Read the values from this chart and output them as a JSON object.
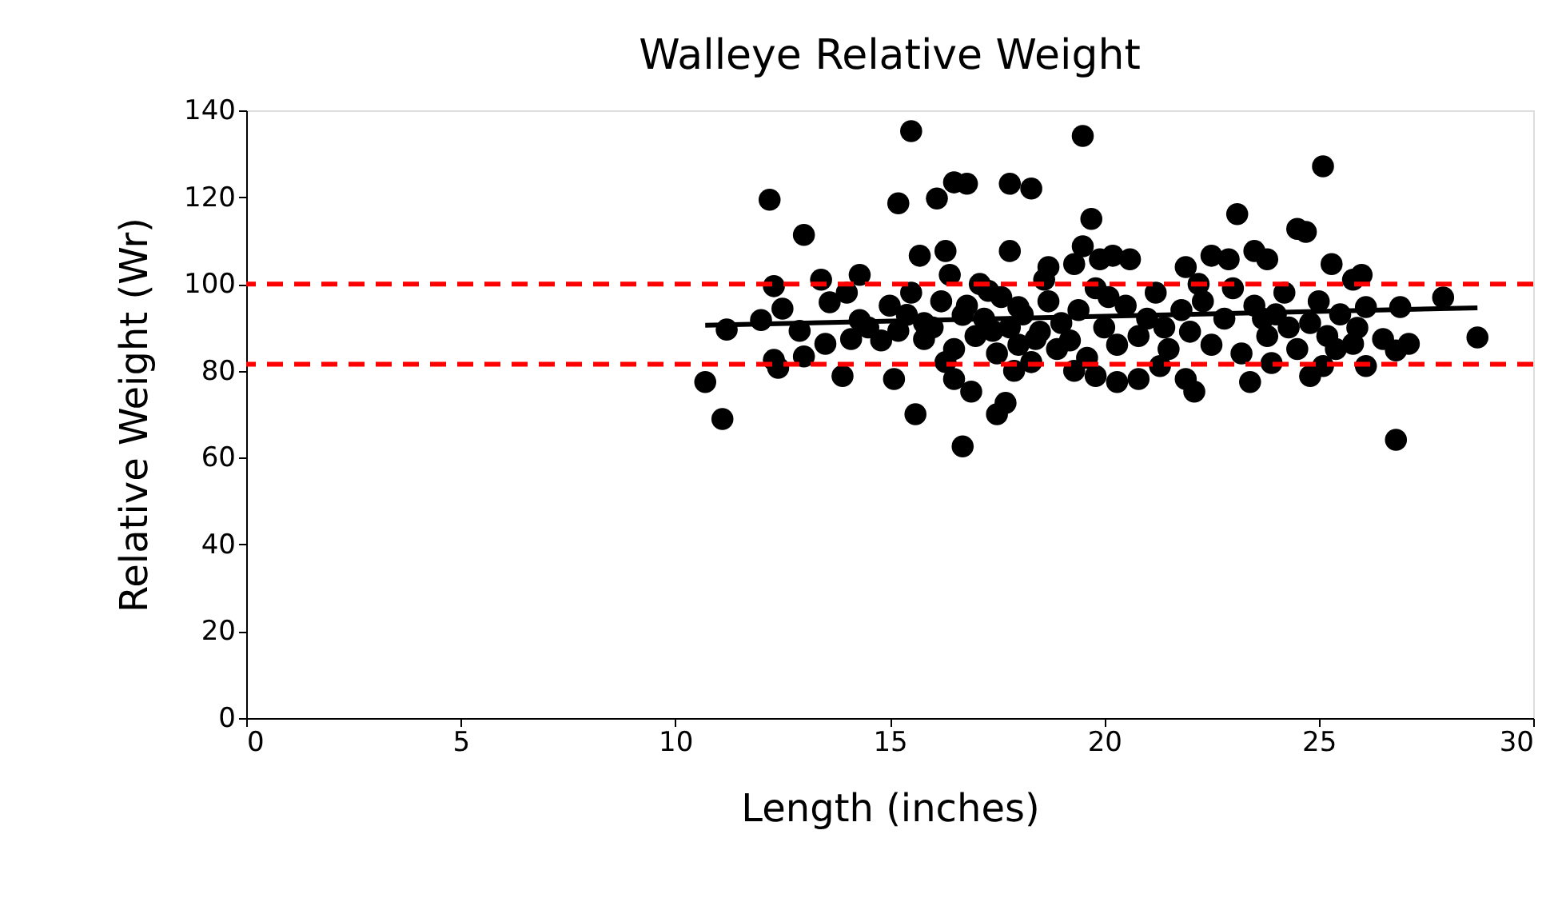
{
  "chart_data": {
    "type": "scatter",
    "title": "Walleye Relative Weight",
    "xlabel": "Length (inches)",
    "ylabel": "Relative Weight (Wr)",
    "xlim": [
      0,
      30
    ],
    "xticks": [
      0,
      5,
      10,
      15,
      20,
      25,
      30
    ],
    "ylim": [
      0,
      140
    ],
    "yticks": [
      0,
      20,
      40,
      60,
      80,
      100,
      120,
      140
    ],
    "grid": false,
    "marker": "circle",
    "series": [
      {
        "type": "scatter",
        "color": "#000000",
        "x": [
          10.7,
          11.1,
          11.2,
          12.2,
          12.3,
          12.3,
          12.4,
          12.0,
          12.5,
          13.0,
          13.0,
          12.9,
          13.4,
          13.6,
          13.5,
          13.9,
          14.3,
          14.3,
          14.1,
          15.1,
          15.2,
          15.5,
          15.6,
          15.7,
          15.4,
          15.2,
          15.8,
          16.1,
          16.5,
          16.8,
          16.3,
          16.4,
          16.5,
          16.7,
          16.9,
          17.5,
          17.7,
          17.8,
          18.3,
          17.8,
          16.7,
          17.3,
          17.4,
          18.0,
          18.4,
          18.7,
          19.3,
          19.5,
          19.5,
          19.7,
          19.9,
          20.2,
          20.6,
          19.8,
          20.3,
          20.8,
          21.3,
          21.9,
          22.1,
          21.9,
          22.5,
          22.9,
          23.1,
          23.5,
          23.8,
          23.4,
          23.9,
          24.5,
          24.7,
          25.1,
          24.8,
          25.1,
          25.3,
          25.8,
          26.0,
          26.1,
          25.8,
          26.5,
          26.8,
          26.8,
          26.9,
          27.1,
          27.9,
          28.7,
          25.9,
          26.1,
          16.0,
          16.5,
          16.8,
          17.0,
          17.2,
          17.5,
          17.6,
          17.8,
          18.0,
          18.1,
          18.3,
          18.5,
          18.7,
          18.9,
          19.0,
          19.2,
          19.4,
          19.6,
          19.8,
          20.0,
          20.3,
          20.5,
          20.8,
          21.0,
          21.2,
          21.5,
          21.8,
          22.0,
          22.3,
          22.5,
          22.8,
          23.0,
          23.2,
          23.5,
          23.8,
          24.0,
          24.2,
          24.5,
          24.8,
          25.0,
          25.2,
          25.5,
          14.8,
          15.0,
          15.5,
          15.8,
          16.2,
          16.3,
          17.1,
          17.9,
          18.6,
          19.3,
          20.1,
          21.4,
          22.2,
          23.7,
          24.3,
          25.4,
          14.0,
          14.5
        ],
        "values": [
          77.4,
          68.9,
          89.5,
          119.4,
          99.5,
          82.5,
          80.7,
          91.7,
          94.3,
          111.3,
          83.3,
          89.2,
          101.0,
          95.8,
          86.2,
          78.8,
          102.1,
          91.7,
          87.3,
          78.1,
          118.6,
          135.2,
          70.0,
          106.5,
          92.9,
          89.2,
          87.3,
          119.7,
          123.4,
          123.1,
          107.6,
          102.1,
          78.1,
          62.6,
          75.2,
          70.0,
          72.6,
          123.1,
          122.0,
          107.6,
          92.9,
          98.4,
          89.2,
          94.7,
          87.3,
          103.9,
          104.6,
          108.7,
          134.1,
          115.0,
          105.7,
          106.5,
          105.7,
          78.8,
          77.4,
          78.1,
          81.1,
          78.1,
          75.2,
          103.9,
          106.5,
          105.7,
          116.1,
          107.6,
          105.7,
          77.4,
          81.8,
          112.7,
          112.0,
          127.1,
          78.8,
          81.1,
          104.6,
          101.0,
          102.1,
          81.1,
          86.2,
          87.3,
          84.7,
          64.1,
          94.7,
          86.2,
          96.9,
          87.7,
          89.9,
          94.7,
          90,
          85,
          95,
          88,
          92,
          84,
          97,
          90,
          86,
          93,
          82,
          89,
          96,
          85,
          91,
          87,
          94,
          83,
          99,
          90,
          86,
          95,
          88,
          92,
          98,
          85,
          94,
          89,
          96,
          86,
          92,
          99,
          84,
          95,
          88,
          93,
          98,
          85,
          91,
          96,
          88,
          93,
          87,
          95,
          98,
          91,
          96,
          82,
          100,
          80,
          101,
          80,
          97,
          90,
          100,
          92,
          90,
          85,
          98,
          90
        ]
      },
      {
        "type": "line",
        "color": "#000000",
        "marker": "none",
        "line_style": "solid",
        "x": [
          10.7,
          28.7
        ],
        "values": [
          90.5,
          94.5
        ]
      }
    ],
    "ref_lines": [
      {
        "axis": "y",
        "value": 100,
        "color": "#ff0000",
        "line_style": "dashed"
      },
      {
        "axis": "y",
        "value": 81.5,
        "color": "#ff0000",
        "line_style": "dashed"
      }
    ]
  }
}
